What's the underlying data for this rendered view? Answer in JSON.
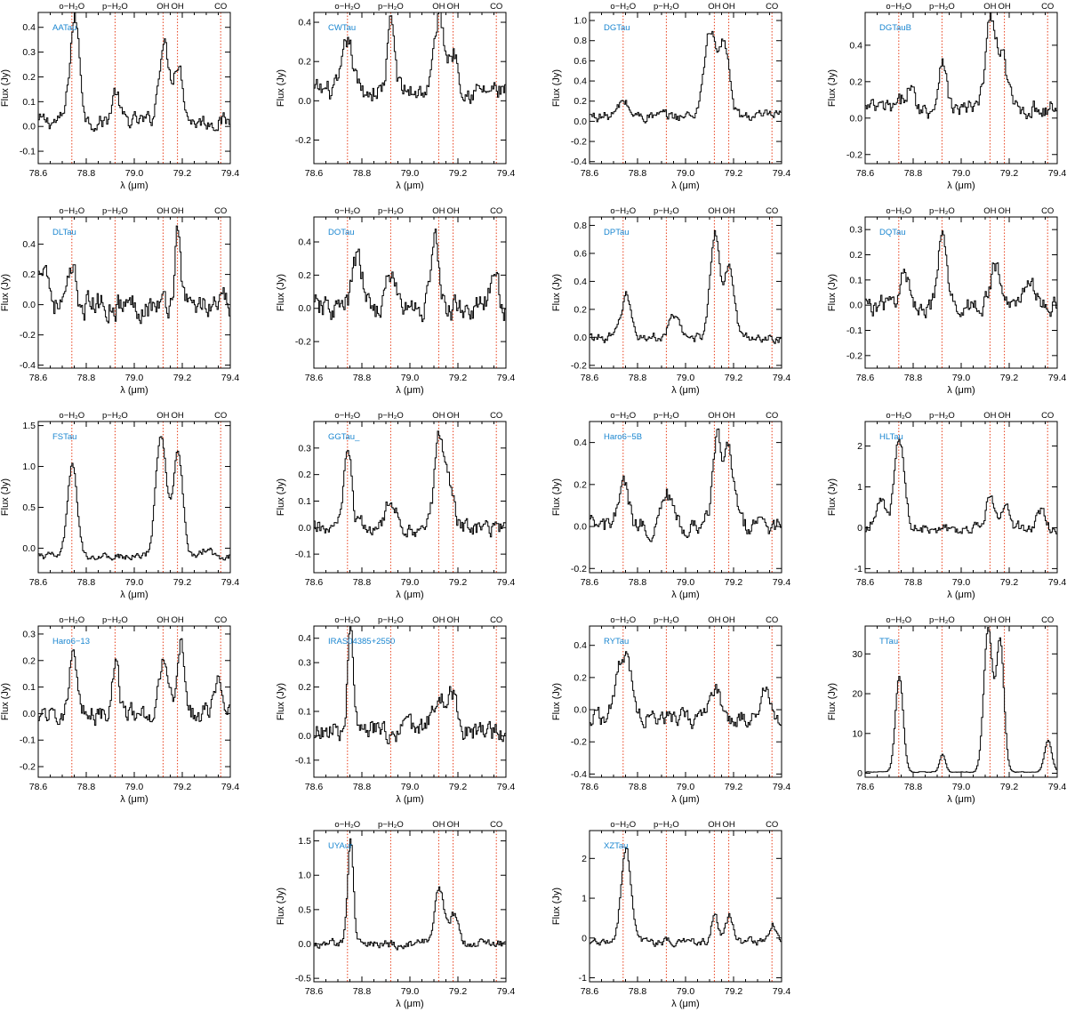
{
  "figure": {
    "xlabel": "λ (μm)",
    "ylabel": "Flux (Jy)",
    "xlim": [
      78.6,
      79.4
    ],
    "xticks": [
      78.6,
      78.8,
      79.0,
      79.2,
      79.4
    ],
    "colors": {
      "spectrum": "#000000",
      "marker": "#e8401c",
      "name": "#1a86d0",
      "axes": "#000000"
    }
  },
  "chart_data": [
    {
      "type": "line",
      "title": "AATau",
      "xlim": [
        78.6,
        79.4
      ],
      "ylim": [
        -0.15,
        0.46
      ],
      "yticks": [
        "-0.1",
        "0.0",
        "0.1",
        "0.2",
        "0.3",
        "0.4"
      ],
      "lines": [
        {
          "label": "o−H₂O",
          "x": 78.74
        },
        {
          "label": "p−H₂O",
          "x": 78.92
        },
        {
          "label": "OH",
          "x": 79.12
        },
        {
          "label": "OH",
          "x": 79.18
        },
        {
          "label": "CO",
          "x": 79.36
        }
      ],
      "peaks": [
        [
          78.75,
          0.42,
          0.02
        ],
        [
          79.12,
          0.32,
          0.02
        ],
        [
          79.18,
          0.24,
          0.02
        ],
        [
          78.92,
          0.12,
          0.015
        ]
      ],
      "baseline": 0.02,
      "noise": 0.06
    },
    {
      "type": "line",
      "title": "CWTau",
      "xlim": [
        78.6,
        79.4
      ],
      "ylim": [
        -0.32,
        0.45
      ],
      "yticks": [
        "-0.2",
        "0.0",
        "0.2",
        "0.4"
      ],
      "lines": [
        {
          "label": "o−H₂O",
          "x": 78.74
        },
        {
          "label": "p−H₂O",
          "x": 78.92
        },
        {
          "label": "OH",
          "x": 79.12
        },
        {
          "label": "OH",
          "x": 79.18
        },
        {
          "label": "CO",
          "x": 79.36
        }
      ],
      "peaks": [
        [
          78.74,
          0.25,
          0.02
        ],
        [
          78.92,
          0.35,
          0.015
        ],
        [
          79.12,
          0.38,
          0.02
        ],
        [
          79.18,
          0.2,
          0.02
        ]
      ],
      "baseline": 0.05,
      "noise": 0.1
    },
    {
      "type": "line",
      "title": "DGTau",
      "xlim": [
        78.6,
        79.4
      ],
      "ylim": [
        -0.42,
        1.08
      ],
      "yticks": [
        "-0.4",
        "-0.2",
        "0.0",
        "0.2",
        "0.4",
        "0.6",
        "0.8",
        "1.0"
      ],
      "lines": [
        {
          "label": "o−H₂O",
          "x": 78.74
        },
        {
          "label": "p−H₂O",
          "x": 78.92
        },
        {
          "label": "OH",
          "x": 79.12
        },
        {
          "label": "OH",
          "x": 79.18
        },
        {
          "label": "CO",
          "x": 79.36
        }
      ],
      "peaks": [
        [
          79.1,
          0.85,
          0.025
        ],
        [
          79.16,
          0.7,
          0.02
        ],
        [
          78.74,
          0.15,
          0.02
        ]
      ],
      "baseline": 0.05,
      "noise": 0.1
    },
    {
      "type": "line",
      "title": "DGTauB",
      "xlim": [
        78.6,
        79.4
      ],
      "ylim": [
        -0.25,
        0.58
      ],
      "yticks": [
        "-0.2",
        "0.0",
        "0.2",
        "0.4"
      ],
      "lines": [
        {
          "label": "o−H₂O",
          "x": 78.74
        },
        {
          "label": "p−H₂O",
          "x": 78.92
        },
        {
          "label": "OH",
          "x": 79.12
        },
        {
          "label": "OH",
          "x": 79.18
        },
        {
          "label": "CO",
          "x": 79.36
        }
      ],
      "peaks": [
        [
          78.92,
          0.3,
          0.015
        ],
        [
          79.12,
          0.5,
          0.02
        ],
        [
          79.17,
          0.28,
          0.02
        ],
        [
          78.78,
          0.12,
          0.02
        ]
      ],
      "baseline": 0.05,
      "noise": 0.09
    },
    {
      "type": "line",
      "title": "DLTau",
      "xlim": [
        78.6,
        79.4
      ],
      "ylim": [
        -0.42,
        0.58
      ],
      "yticks": [
        "-0.4",
        "-0.2",
        "0.0",
        "0.2",
        "0.4"
      ],
      "lines": [
        {
          "label": "o−H₂O",
          "x": 78.74
        },
        {
          "label": "p−H₂O",
          "x": 78.92
        },
        {
          "label": "OH",
          "x": 79.12
        },
        {
          "label": "OH",
          "x": 79.18
        },
        {
          "label": "CO",
          "x": 79.36
        }
      ],
      "peaks": [
        [
          79.18,
          0.5,
          0.012
        ],
        [
          78.62,
          0.3,
          0.02
        ],
        [
          78.74,
          0.2,
          0.015
        ]
      ],
      "baseline": 0.0,
      "noise": 0.16
    },
    {
      "type": "line",
      "title": "DOTau",
      "xlim": [
        78.6,
        79.4
      ],
      "ylim": [
        -0.36,
        0.55
      ],
      "yticks": [
        "-0.2",
        "0.0",
        "0.2",
        "0.4"
      ],
      "lines": [
        {
          "label": "o−H₂O",
          "x": 78.74
        },
        {
          "label": "p−H₂O",
          "x": 78.92
        },
        {
          "label": "OH",
          "x": 79.12
        },
        {
          "label": "OH",
          "x": 79.18
        },
        {
          "label": "CO",
          "x": 79.36
        }
      ],
      "peaks": [
        [
          79.1,
          0.45,
          0.015
        ],
        [
          78.78,
          0.3,
          0.02
        ],
        [
          78.92,
          0.2,
          0.02
        ],
        [
          79.35,
          0.15,
          0.02
        ]
      ],
      "baseline": 0.0,
      "noise": 0.14
    },
    {
      "type": "line",
      "title": "DPTau",
      "xlim": [
        78.6,
        79.4
      ],
      "ylim": [
        -0.22,
        0.86
      ],
      "yticks": [
        "-0.2",
        "0.0",
        "0.2",
        "0.4",
        "0.6",
        "0.8"
      ],
      "lines": [
        {
          "label": "o−H₂O",
          "x": 78.74
        },
        {
          "label": "p−H₂O",
          "x": 78.92
        },
        {
          "label": "OH",
          "x": 79.12
        },
        {
          "label": "OH",
          "x": 79.18
        },
        {
          "label": "CO",
          "x": 79.36
        }
      ],
      "peaks": [
        [
          79.12,
          0.75,
          0.02
        ],
        [
          79.18,
          0.5,
          0.02
        ],
        [
          78.75,
          0.3,
          0.02
        ],
        [
          78.95,
          0.15,
          0.02
        ]
      ],
      "baseline": 0.0,
      "noise": 0.06
    },
    {
      "type": "line",
      "title": "DQTau",
      "xlim": [
        78.6,
        79.4
      ],
      "ylim": [
        -0.25,
        0.35
      ],
      "yticks": [
        "-0.2",
        "-0.1",
        "0.0",
        "0.1",
        "0.2",
        "0.3"
      ],
      "lines": [
        {
          "label": "o−H₂O",
          "x": 78.74
        },
        {
          "label": "p−H₂O",
          "x": 78.92
        },
        {
          "label": "OH",
          "x": 79.12
        },
        {
          "label": "OH",
          "x": 79.18
        },
        {
          "label": "CO",
          "x": 79.36
        }
      ],
      "peaks": [
        [
          78.92,
          0.3,
          0.015
        ],
        [
          78.76,
          0.12,
          0.02
        ],
        [
          79.14,
          0.15,
          0.02
        ],
        [
          79.28,
          0.12,
          0.02
        ]
      ],
      "baseline": 0.0,
      "noise": 0.07
    },
    {
      "type": "line",
      "title": "FSTau",
      "xlim": [
        78.6,
        79.4
      ],
      "ylim": [
        -0.3,
        1.55
      ],
      "yticks": [
        "0.0",
        "0.5",
        "1.0",
        "1.5"
      ],
      "lines": [
        {
          "label": "o−H₂O",
          "x": 78.74
        },
        {
          "label": "p−H₂O",
          "x": 78.92
        },
        {
          "label": "OH",
          "x": 79.12
        },
        {
          "label": "OH",
          "x": 79.18
        },
        {
          "label": "CO",
          "x": 79.36
        }
      ],
      "peaks": [
        [
          78.74,
          1.1,
          0.02
        ],
        [
          79.11,
          1.5,
          0.022
        ],
        [
          79.18,
          1.3,
          0.02
        ],
        [
          79.3,
          0.1,
          0.02
        ]
      ],
      "baseline": -0.1,
      "noise": 0.08
    },
    {
      "type": "line",
      "title": "GGTau_",
      "xlim": [
        78.6,
        79.4
      ],
      "ylim": [
        -0.17,
        0.4
      ],
      "yticks": [
        "-0.1",
        "0.0",
        "0.1",
        "0.2",
        "0.3"
      ],
      "lines": [
        {
          "label": "o−H₂O",
          "x": 78.74
        },
        {
          "label": "p−H₂O",
          "x": 78.92
        },
        {
          "label": "OH",
          "x": 79.12
        },
        {
          "label": "OH",
          "x": 79.18
        },
        {
          "label": "CO",
          "x": 79.36
        }
      ],
      "peaks": [
        [
          78.74,
          0.3,
          0.015
        ],
        [
          79.12,
          0.32,
          0.02
        ],
        [
          79.16,
          0.15,
          0.02
        ],
        [
          78.92,
          0.1,
          0.02
        ]
      ],
      "baseline": 0.0,
      "noise": 0.06
    },
    {
      "type": "line",
      "title": "Haro6−5B",
      "xlim": [
        78.6,
        79.4
      ],
      "ylim": [
        -0.22,
        0.5
      ],
      "yticks": [
        "-0.2",
        "0.0",
        "0.2",
        "0.4"
      ],
      "lines": [
        {
          "label": "o−H₂O",
          "x": 78.74
        },
        {
          "label": "p−H₂O",
          "x": 78.92
        },
        {
          "label": "OH",
          "x": 79.12
        },
        {
          "label": "OH",
          "x": 79.18
        },
        {
          "label": "CO",
          "x": 79.36
        }
      ],
      "peaks": [
        [
          79.13,
          0.4,
          0.02
        ],
        [
          79.18,
          0.35,
          0.02
        ],
        [
          78.74,
          0.2,
          0.02
        ],
        [
          78.92,
          0.15,
          0.02
        ]
      ],
      "baseline": 0.0,
      "noise": 0.08
    },
    {
      "type": "line",
      "title": "HLTau",
      "xlim": [
        78.6,
        79.4
      ],
      "ylim": [
        -1.1,
        2.6
      ],
      "yticks": [
        "-1",
        "0",
        "1",
        "2"
      ],
      "lines": [
        {
          "label": "o−H₂O",
          "x": 78.74
        },
        {
          "label": "p−H₂O",
          "x": 78.92
        },
        {
          "label": "OH",
          "x": 79.12
        },
        {
          "label": "OH",
          "x": 79.18
        },
        {
          "label": "CO",
          "x": 79.36
        }
      ],
      "peaks": [
        [
          78.74,
          2.2,
          0.02
        ],
        [
          79.12,
          0.8,
          0.015
        ],
        [
          79.18,
          0.6,
          0.015
        ],
        [
          79.33,
          0.4,
          0.015
        ],
        [
          78.66,
          0.7,
          0.02
        ]
      ],
      "baseline": 0.0,
      "noise": 0.25
    },
    {
      "type": "line",
      "title": "Haro6−13",
      "xlim": [
        78.6,
        79.4
      ],
      "ylim": [
        -0.24,
        0.33
      ],
      "yticks": [
        "-0.2",
        "-0.1",
        "0.0",
        "0.1",
        "0.2",
        "0.3"
      ],
      "lines": [
        {
          "label": "o−H₂O",
          "x": 78.74
        },
        {
          "label": "p−H₂O",
          "x": 78.92
        },
        {
          "label": "OH",
          "x": 79.12
        },
        {
          "label": "OH",
          "x": 79.18
        },
        {
          "label": "CO",
          "x": 79.36
        }
      ],
      "peaks": [
        [
          78.74,
          0.2,
          0.015
        ],
        [
          78.92,
          0.18,
          0.015
        ],
        [
          79.12,
          0.2,
          0.02
        ],
        [
          79.19,
          0.28,
          0.015
        ],
        [
          79.35,
          0.15,
          0.02
        ]
      ],
      "baseline": 0.0,
      "noise": 0.07
    },
    {
      "type": "line",
      "title": "IRAS04385+2550",
      "xlim": [
        78.6,
        79.4
      ],
      "ylim": [
        -0.17,
        0.45
      ],
      "yticks": [
        "-0.1",
        "0.0",
        "0.1",
        "0.2",
        "0.3",
        "0.4"
      ],
      "lines": [
        {
          "label": "o−H₂O",
          "x": 78.74
        },
        {
          "label": "p−H₂O",
          "x": 78.92
        },
        {
          "label": "OH",
          "x": 79.12
        },
        {
          "label": "OH",
          "x": 79.18
        },
        {
          "label": "CO",
          "x": 79.36
        }
      ],
      "peaks": [
        [
          78.75,
          0.4,
          0.012
        ],
        [
          79.12,
          0.15,
          0.03
        ],
        [
          79.18,
          0.12,
          0.02
        ]
      ],
      "baseline": 0.02,
      "noise": 0.08
    },
    {
      "type": "line",
      "title": "RYTau",
      "xlim": [
        78.6,
        79.4
      ],
      "ylim": [
        -0.42,
        0.52
      ],
      "yticks": [
        "-0.4",
        "-0.2",
        "0.0",
        "0.2",
        "0.4"
      ],
      "lines": [
        {
          "label": "o−H₂O",
          "x": 78.74
        },
        {
          "label": "p−H₂O",
          "x": 78.92
        },
        {
          "label": "OH",
          "x": 79.12
        },
        {
          "label": "OH",
          "x": 79.18
        },
        {
          "label": "CO",
          "x": 79.36
        }
      ],
      "peaks": [
        [
          78.74,
          0.4,
          0.03
        ],
        [
          79.12,
          0.2,
          0.02
        ],
        [
          79.33,
          0.2,
          0.02
        ]
      ],
      "baseline": -0.05,
      "noise": 0.1
    },
    {
      "type": "line",
      "title": "TTau",
      "xlim": [
        78.6,
        79.4
      ],
      "ylim": [
        -1,
        37
      ],
      "yticks": [
        "0",
        "10",
        "20",
        "30"
      ],
      "lines": [
        {
          "label": "o−H₂O",
          "x": 78.74
        },
        {
          "label": "p−H₂O",
          "x": 78.92
        },
        {
          "label": "OH",
          "x": 79.12
        },
        {
          "label": "OH",
          "x": 79.18
        },
        {
          "label": "CO",
          "x": 79.36
        }
      ],
      "peaks": [
        [
          78.74,
          24,
          0.016
        ],
        [
          78.92,
          4.5,
          0.012
        ],
        [
          79.11,
          36,
          0.018
        ],
        [
          79.16,
          33,
          0.016
        ],
        [
          79.36,
          8,
          0.015
        ]
      ],
      "baseline": 0.3,
      "noise": 0.2
    },
    {
      "type": "line",
      "title": "UYAur",
      "xlim": [
        78.6,
        79.4
      ],
      "ylim": [
        -0.55,
        1.65
      ],
      "yticks": [
        "-0.5",
        "0.0",
        "0.5",
        "1.0",
        "1.5"
      ],
      "lines": [
        {
          "label": "o−H₂O",
          "x": 78.74
        },
        {
          "label": "p−H₂O",
          "x": 78.92
        },
        {
          "label": "OH",
          "x": 79.12
        },
        {
          "label": "OH",
          "x": 79.18
        },
        {
          "label": "CO",
          "x": 79.36
        }
      ],
      "peaks": [
        [
          78.75,
          1.5,
          0.012
        ],
        [
          79.12,
          0.8,
          0.02
        ],
        [
          79.18,
          0.4,
          0.02
        ]
      ],
      "baseline": 0.0,
      "noise": 0.12
    },
    {
      "type": "line",
      "title": "XZTau",
      "xlim": [
        78.6,
        79.4
      ],
      "ylim": [
        -1.1,
        2.7
      ],
      "yticks": [
        "-1",
        "0",
        "1",
        "2"
      ],
      "lines": [
        {
          "label": "o−H₂O",
          "x": 78.74
        },
        {
          "label": "p−H₂O",
          "x": 78.92
        },
        {
          "label": "OH",
          "x": 79.12
        },
        {
          "label": "OH",
          "x": 79.18
        },
        {
          "label": "CO",
          "x": 79.36
        }
      ],
      "peaks": [
        [
          78.75,
          2.3,
          0.02
        ],
        [
          79.12,
          0.6,
          0.015
        ],
        [
          79.18,
          0.6,
          0.015
        ],
        [
          79.36,
          0.5,
          0.015
        ]
      ],
      "baseline": -0.1,
      "noise": 0.18
    }
  ]
}
